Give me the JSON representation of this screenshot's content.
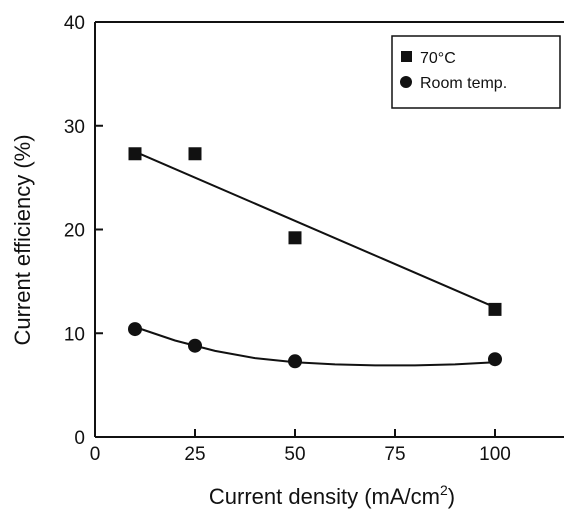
{
  "chart_data": {
    "type": "scatter",
    "title": "",
    "xlabel": "Current density (mA/cm",
    "xlabel_sup": "2",
    "xlabel_tail": ")",
    "ylabel": "Current efficiency (%)",
    "xlim": [
      0,
      110
    ],
    "ylim": [
      0,
      40
    ],
    "xticks": [
      "0",
      "25",
      "50",
      "75",
      "100"
    ],
    "yticks": [
      "0",
      "10",
      "20",
      "30",
      "40"
    ],
    "grid": false,
    "legend_position": "top-right",
    "series": [
      {
        "name": "70°C",
        "marker": "square",
        "color": "#111111",
        "x": [
          10,
          25,
          50,
          100
        ],
        "y": [
          27.3,
          27.3,
          19.2,
          12.3
        ],
        "fit": "linear",
        "fit_line": [
          [
            10,
            27.5
          ],
          [
            100,
            12.5
          ]
        ]
      },
      {
        "name": "Room temp.",
        "marker": "circle",
        "color": "#111111",
        "x": [
          10,
          25,
          50,
          100
        ],
        "y": [
          10.4,
          8.8,
          7.3,
          7.5
        ],
        "fit": "curve",
        "fit_line": [
          [
            10,
            10.6
          ],
          [
            20,
            9.3
          ],
          [
            30,
            8.3
          ],
          [
            40,
            7.6
          ],
          [
            50,
            7.2
          ],
          [
            60,
            7.0
          ],
          [
            70,
            6.9
          ],
          [
            80,
            6.9
          ],
          [
            90,
            7.0
          ],
          [
            100,
            7.2
          ]
        ]
      }
    ]
  }
}
